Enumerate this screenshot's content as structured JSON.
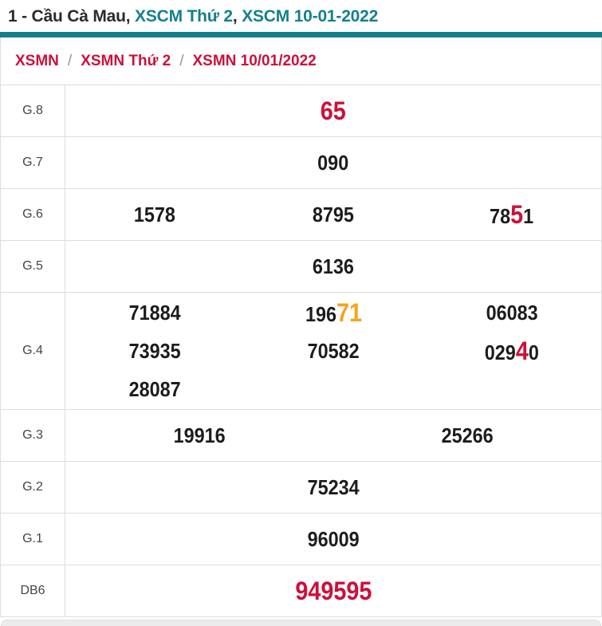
{
  "title": {
    "part1": "1 - Cầu Cà Mau,",
    "link1": "XSCM Thứ 2",
    "separator": ",",
    "link2": "XSCM 10-01-2022"
  },
  "breadcrumb": {
    "items": [
      "XSMN",
      "XSMN Thứ 2",
      "XSMN 10/01/2022"
    ],
    "separator": "/"
  },
  "colors": {
    "teal": "#13818b",
    "red": "#cc103c",
    "orange": "#f9a21b",
    "border": "#dddddd",
    "value_text": "#1c1c1c",
    "label_text": "#454545",
    "breadcrumb_separator": "#8a96a3"
  },
  "table": {
    "rows": [
      {
        "label": "G.8",
        "single": true,
        "lines": [
          [
            [
              {
                "text": "65",
                "color": "red",
                "large": true
              }
            ]
          ]
        ]
      },
      {
        "label": "G.7",
        "single": true,
        "lines": [
          [
            [
              {
                "text": "090"
              }
            ]
          ]
        ]
      },
      {
        "label": "G.6",
        "single": true,
        "lines": [
          [
            [
              {
                "text": "1578"
              }
            ],
            [
              {
                "text": "8795"
              }
            ],
            [
              {
                "text": "78"
              },
              {
                "text": "5",
                "color": "red",
                "large": true
              },
              {
                "text": "1"
              }
            ]
          ]
        ]
      },
      {
        "label": "G.5",
        "single": true,
        "lines": [
          [
            [
              {
                "text": "6136"
              }
            ]
          ]
        ]
      },
      {
        "label": "G.4",
        "single": false,
        "lines": [
          [
            [
              {
                "text": "71884"
              }
            ],
            [
              {
                "text": "196"
              },
              {
                "text": "71",
                "color": "orange",
                "large": true
              }
            ],
            [
              {
                "text": "06083"
              }
            ]
          ],
          [
            [
              {
                "text": "73935"
              }
            ],
            [
              {
                "text": "70582"
              }
            ],
            [
              {
                "text": "029"
              },
              {
                "text": "4",
                "color": "red",
                "large": true
              },
              {
                "text": "0"
              }
            ]
          ],
          [
            [
              {
                "text": "28087"
              }
            ],
            [],
            []
          ]
        ]
      },
      {
        "label": "G.3",
        "single": true,
        "lines": [
          [
            [
              {
                "text": "19916"
              }
            ],
            [
              {
                "text": "25266"
              }
            ]
          ]
        ]
      },
      {
        "label": "G.2",
        "single": true,
        "lines": [
          [
            [
              {
                "text": "75234"
              }
            ]
          ]
        ]
      },
      {
        "label": "G.1",
        "single": true,
        "lines": [
          [
            [
              {
                "text": "96009"
              }
            ]
          ]
        ]
      },
      {
        "label": "DB6",
        "single": true,
        "lines": [
          [
            [
              {
                "text": "949595",
                "color": "red",
                "large": true
              }
            ]
          ]
        ]
      }
    ]
  }
}
